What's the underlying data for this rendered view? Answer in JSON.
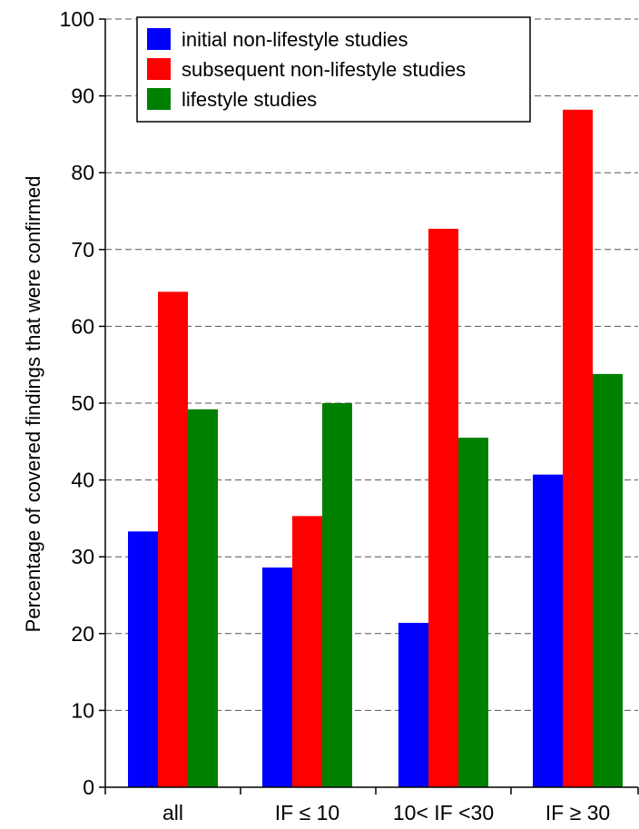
{
  "chart_data": {
    "type": "bar",
    "ylabel": "Percentage of covered findings that were confirmed",
    "xlabel": "",
    "ylim": [
      0,
      100
    ],
    "yticks": [
      0,
      10,
      20,
      30,
      40,
      50,
      60,
      70,
      80,
      90,
      100
    ],
    "grid": "horizontal-dashed",
    "legend": "top-left",
    "categories": [
      "all",
      "IF ≤ 10",
      "10< IF <30",
      "IF ≥ 30"
    ],
    "series": [
      {
        "name": "initial non-lifestyle studies",
        "color": "#0000ff",
        "values": [
          33.3,
          28.6,
          21.4,
          40.7
        ]
      },
      {
        "name": "subsequent non-lifestyle studies",
        "color": "#ff0000",
        "values": [
          64.5,
          35.3,
          72.7,
          88.2
        ]
      },
      {
        "name": "lifestyle studies",
        "color": "#008000",
        "values": [
          49.2,
          50.0,
          45.5,
          53.8
        ]
      }
    ]
  }
}
